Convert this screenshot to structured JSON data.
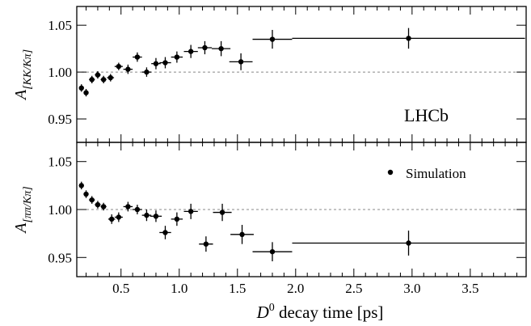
{
  "chart_data": [
    {
      "type": "scatter",
      "panel": "top",
      "ylabel": "A",
      "ylabel_sub": "[KK/Kπ]",
      "annotation": "LHCb",
      "ylim": [
        0.925,
        1.07
      ],
      "xlim": [
        0.12,
        3.98
      ],
      "yticks": [
        0.95,
        1.0,
        1.05
      ],
      "ytick_labels": [
        "0.95",
        "1.00",
        "1.05"
      ],
      "reference_line": 1.0,
      "series": [
        {
          "points": [
            {
              "x": 0.16,
              "y": 0.983,
              "xerr": 0.02,
              "yerr": 0.004
            },
            {
              "x": 0.2,
              "y": 0.978,
              "xerr": 0.02,
              "yerr": 0.004
            },
            {
              "x": 0.25,
              "y": 0.992,
              "xerr": 0.025,
              "yerr": 0.004
            },
            {
              "x": 0.3,
              "y": 0.997,
              "xerr": 0.025,
              "yerr": 0.004
            },
            {
              "x": 0.35,
              "y": 0.992,
              "xerr": 0.025,
              "yerr": 0.004
            },
            {
              "x": 0.41,
              "y": 0.994,
              "xerr": 0.03,
              "yerr": 0.004
            },
            {
              "x": 0.48,
              "y": 1.006,
              "xerr": 0.035,
              "yerr": 0.004
            },
            {
              "x": 0.56,
              "y": 1.003,
              "xerr": 0.04,
              "yerr": 0.005
            },
            {
              "x": 0.64,
              "y": 1.016,
              "xerr": 0.04,
              "yerr": 0.005
            },
            {
              "x": 0.72,
              "y": 1.0,
              "xerr": 0.04,
              "yerr": 0.005
            },
            {
              "x": 0.8,
              "y": 1.009,
              "xerr": 0.04,
              "yerr": 0.006
            },
            {
              "x": 0.88,
              "y": 1.01,
              "xerr": 0.05,
              "yerr": 0.006
            },
            {
              "x": 0.98,
              "y": 1.016,
              "xerr": 0.05,
              "yerr": 0.006
            },
            {
              "x": 1.1,
              "y": 1.022,
              "xerr": 0.06,
              "yerr": 0.007
            },
            {
              "x": 1.22,
              "y": 1.026,
              "xerr": 0.06,
              "yerr": 0.007
            },
            {
              "x": 1.36,
              "y": 1.025,
              "xerr": 0.08,
              "yerr": 0.008
            },
            {
              "x": 1.53,
              "y": 1.011,
              "xerr": 0.1,
              "yerr": 0.009
            },
            {
              "x": 1.8,
              "y": 1.035,
              "xerr": 0.17,
              "yerr": 0.01
            },
            {
              "x": 2.97,
              "y": 1.036,
              "xerr": 1.0,
              "yerr": 0.011
            }
          ]
        }
      ]
    },
    {
      "type": "scatter",
      "panel": "bottom",
      "ylabel": "A",
      "ylabel_sub": "[ππ/Kπ]",
      "xlabel_base": "D",
      "xlabel_sup": "0",
      "xlabel_rest": " decay time [ps]",
      "legend": "Simulation",
      "legend_position": "top-right",
      "ylim": [
        0.93,
        1.07
      ],
      "xlim": [
        0.12,
        3.98
      ],
      "xticks": [
        0.5,
        1.0,
        1.5,
        2.0,
        2.5,
        3.0,
        3.5
      ],
      "xtick_labels": [
        "0.5",
        "1.0",
        "1.5",
        "2.0",
        "2.5",
        "3.0",
        "3.5"
      ],
      "yticks": [
        0.95,
        1.0,
        1.05
      ],
      "ytick_labels": [
        "0.95",
        "1.00",
        "1.05"
      ],
      "reference_line": 1.0,
      "series": [
        {
          "name": "Simulation",
          "points": [
            {
              "x": 0.16,
              "y": 1.025,
              "xerr": 0.02,
              "yerr": 0.004
            },
            {
              "x": 0.2,
              "y": 1.016,
              "xerr": 0.02,
              "yerr": 0.004
            },
            {
              "x": 0.25,
              "y": 1.01,
              "xerr": 0.025,
              "yerr": 0.004
            },
            {
              "x": 0.3,
              "y": 1.005,
              "xerr": 0.025,
              "yerr": 0.004
            },
            {
              "x": 0.35,
              "y": 1.003,
              "xerr": 0.025,
              "yerr": 0.004
            },
            {
              "x": 0.42,
              "y": 0.99,
              "xerr": 0.03,
              "yerr": 0.005
            },
            {
              "x": 0.48,
              "y": 0.992,
              "xerr": 0.035,
              "yerr": 0.005
            },
            {
              "x": 0.56,
              "y": 1.003,
              "xerr": 0.04,
              "yerr": 0.005
            },
            {
              "x": 0.64,
              "y": 1.0,
              "xerr": 0.04,
              "yerr": 0.005
            },
            {
              "x": 0.72,
              "y": 0.994,
              "xerr": 0.04,
              "yerr": 0.006
            },
            {
              "x": 0.8,
              "y": 0.993,
              "xerr": 0.05,
              "yerr": 0.006
            },
            {
              "x": 0.88,
              "y": 0.976,
              "xerr": 0.05,
              "yerr": 0.007
            },
            {
              "x": 0.98,
              "y": 0.99,
              "xerr": 0.05,
              "yerr": 0.007
            },
            {
              "x": 1.1,
              "y": 0.998,
              "xerr": 0.06,
              "yerr": 0.008
            },
            {
              "x": 1.23,
              "y": 0.964,
              "xerr": 0.06,
              "yerr": 0.008
            },
            {
              "x": 1.37,
              "y": 0.997,
              "xerr": 0.08,
              "yerr": 0.009
            },
            {
              "x": 1.54,
              "y": 0.974,
              "xerr": 0.1,
              "yerr": 0.01
            },
            {
              "x": 1.8,
              "y": 0.956,
              "xerr": 0.17,
              "yerr": 0.01
            },
            {
              "x": 2.97,
              "y": 0.965,
              "xerr": 1.0,
              "yerr": 0.013
            }
          ]
        }
      ]
    }
  ]
}
